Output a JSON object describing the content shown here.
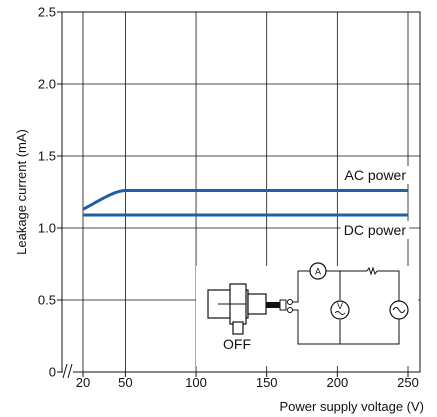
{
  "chart_data": {
    "type": "line",
    "xlabel": "Power supply voltage (V)",
    "ylabel": "Leakage current (mA)",
    "xlim": [
      0,
      250
    ],
    "ylim": [
      0,
      2.5
    ],
    "x_axis_break": true,
    "x_ticks": [
      20,
      50,
      100,
      150,
      200,
      250
    ],
    "y_ticks": [
      0,
      0.5,
      1.0,
      1.5,
      2.0,
      2.5
    ],
    "x_tick_labels": [
      "20",
      "50",
      "100",
      "150",
      "200",
      "250"
    ],
    "y_tick_labels": [
      "0",
      "0.5",
      "1.0",
      "1.5",
      "2.0",
      "2.5"
    ],
    "grid": true,
    "series": [
      {
        "name": "AC power",
        "color": "#1f5fa8",
        "x": [
          20,
          30,
          40,
          50,
          250
        ],
        "y": [
          1.13,
          1.18,
          1.23,
          1.26,
          1.26
        ]
      },
      {
        "name": "DC power",
        "color": "#1f5fa8",
        "x": [
          20,
          250
        ],
        "y": [
          1.09,
          1.09
        ]
      }
    ],
    "inset": {
      "state_label": "OFF",
      "meter_labels": [
        "A",
        "V"
      ]
    }
  }
}
